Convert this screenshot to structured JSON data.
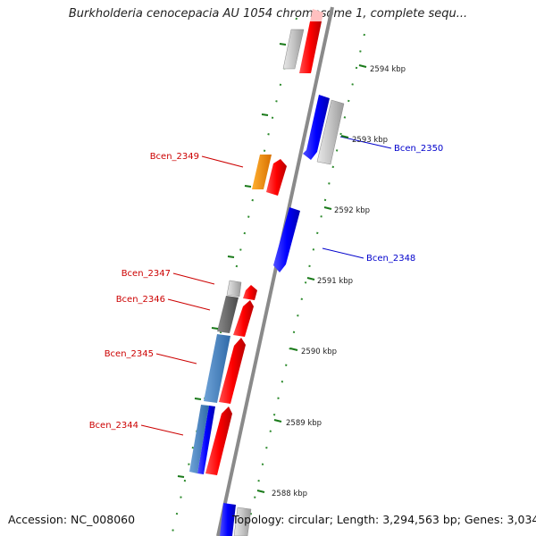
{
  "title": "Burkholderia cenocepacia AU 1054 chromosome 1, complete sequ...",
  "accession_text": "Accession: NC_008060",
  "topology_text": "Topology: circular; Length: 3,294,563 bp; Genes: 3,034",
  "kbp_ticks": [
    {
      "label": "2594 kbp",
      "value": 2594
    },
    {
      "label": "2593 kbp",
      "value": 2593
    },
    {
      "label": "2592 kbp",
      "value": 2592
    },
    {
      "label": "2591 kbp",
      "value": 2591
    },
    {
      "label": "2590 kbp",
      "value": 2590
    },
    {
      "label": "2589 kbp",
      "value": 2589
    },
    {
      "label": "2588 kbp",
      "value": 2588
    }
  ],
  "gene_labels": [
    {
      "name": "Bcen_2350",
      "color": "#0000cc"
    },
    {
      "name": "Bcen_2349",
      "color": "#cc0000"
    },
    {
      "name": "Bcen_2348",
      "color": "#0000cc"
    },
    {
      "name": "Bcen_2347",
      "color": "#cc0000"
    },
    {
      "name": "Bcen_2346",
      "color": "#cc0000"
    },
    {
      "name": "Bcen_2345",
      "color": "#cc0000"
    },
    {
      "name": "Bcen_2344",
      "color": "#cc0000"
    }
  ],
  "colors": {
    "backbone": "#8a8a8a",
    "forward_strand": "#ff0000",
    "reverse_strand": "#0000ff",
    "gc_dots": "#2e8b2e"
  }
}
